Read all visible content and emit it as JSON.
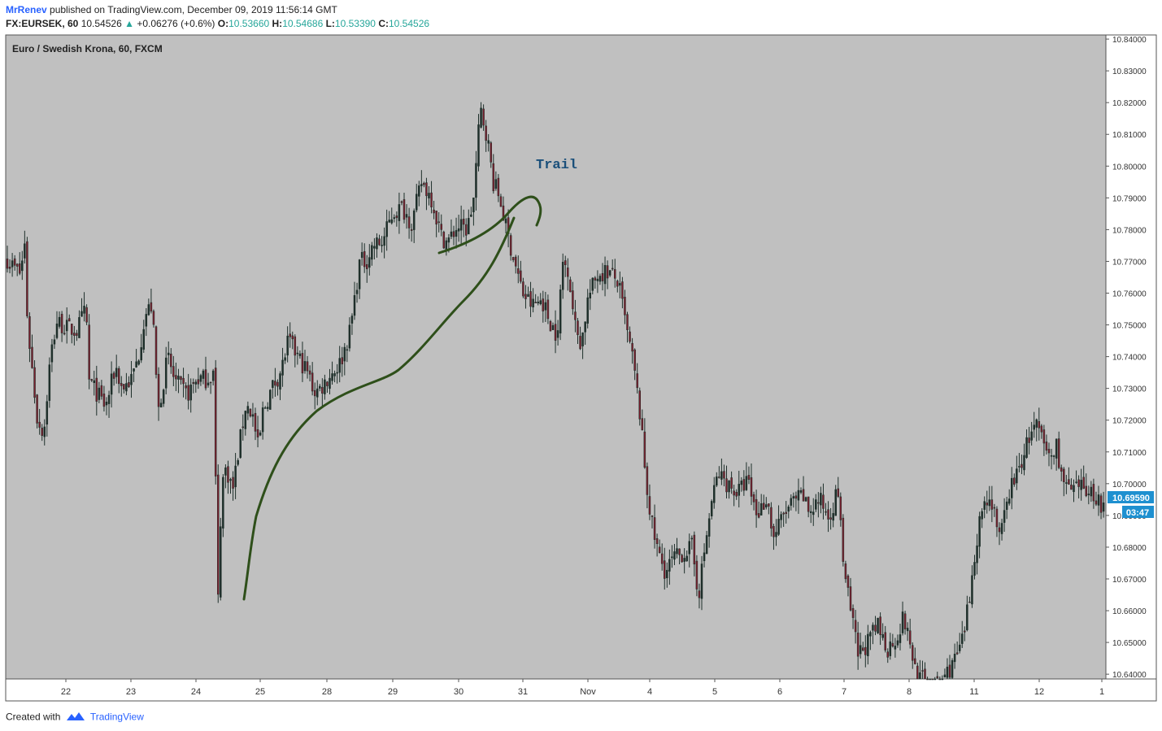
{
  "header": {
    "author": "MrRenev",
    "published_text": "published on TradingView.com, December 09, 2019 11:56:14 GMT",
    "symbol": "FX:EURSEK, 60",
    "last": "10.54526",
    "change_arrow": "▲",
    "change": "+0.06276 (+0.6%)",
    "o_label": "O:",
    "o_value": "10.53660",
    "h_label": "H:",
    "h_value": "10.54686",
    "l_label": "L:",
    "l_value": "10.53390",
    "c_label": "C:",
    "c_value": "10.54526"
  },
  "chart_data": {
    "type": "candlestick",
    "title": "Euro / Swedish Krona, 60, FXCM",
    "ylim": [
      10.6385,
      10.8413
    ],
    "y_ticks": [
      "10.84000",
      "10.83000",
      "10.82000",
      "10.81000",
      "10.80000",
      "10.79000",
      "10.78000",
      "10.77000",
      "10.76000",
      "10.75000",
      "10.74000",
      "10.73000",
      "10.72000",
      "10.71000",
      "10.70000",
      "10.69000",
      "10.68000",
      "10.67000",
      "10.66000",
      "10.65000",
      "10.64000"
    ],
    "x_ticks": [
      "22",
      "23",
      "24",
      "25",
      "28",
      "29",
      "30",
      "31",
      "Nov",
      "4",
      "5",
      "6",
      "7",
      "8",
      "11",
      "12",
      "1"
    ],
    "price_marker": "10.69590",
    "countdown_marker": "03:47",
    "annotation_text": "Trail",
    "path_points": [
      {
        "d": 21.0,
        "p": 10.777
      },
      {
        "d": 21.1,
        "p": 10.77
      },
      {
        "d": 21.3,
        "p": 10.766
      },
      {
        "d": 21.35,
        "p": 10.778
      },
      {
        "d": 21.4,
        "p": 10.75
      },
      {
        "d": 21.5,
        "p": 10.73
      },
      {
        "d": 21.55,
        "p": 10.72
      },
      {
        "d": 21.65,
        "p": 10.716
      },
      {
        "d": 21.75,
        "p": 10.74
      },
      {
        "d": 21.85,
        "p": 10.751
      },
      {
        "d": 22.0,
        "p": 10.749
      },
      {
        "d": 22.15,
        "p": 10.748
      },
      {
        "d": 22.3,
        "p": 10.755
      },
      {
        "d": 22.33,
        "p": 10.733
      },
      {
        "d": 22.45,
        "p": 10.729
      },
      {
        "d": 22.6,
        "p": 10.724
      },
      {
        "d": 22.75,
        "p": 10.737
      },
      {
        "d": 22.85,
        "p": 10.73
      },
      {
        "d": 23.0,
        "p": 10.733
      },
      {
        "d": 23.1,
        "p": 10.74
      },
      {
        "d": 23.2,
        "p": 10.753
      },
      {
        "d": 23.3,
        "p": 10.756
      },
      {
        "d": 23.35,
        "p": 10.744
      },
      {
        "d": 23.4,
        "p": 10.722
      },
      {
        "d": 23.55,
        "p": 10.74
      },
      {
        "d": 23.65,
        "p": 10.733
      },
      {
        "d": 23.75,
        "p": 10.73
      },
      {
        "d": 23.85,
        "p": 10.728
      },
      {
        "d": 24.0,
        "p": 10.733
      },
      {
        "d": 24.15,
        "p": 10.733
      },
      {
        "d": 24.25,
        "p": 10.735
      },
      {
        "d": 24.28,
        "p": 10.71
      },
      {
        "d": 24.32,
        "p": 10.66
      },
      {
        "d": 24.38,
        "p": 10.7
      },
      {
        "d": 24.45,
        "p": 10.705
      },
      {
        "d": 24.55,
        "p": 10.698
      },
      {
        "d": 24.65,
        "p": 10.712
      },
      {
        "d": 24.75,
        "p": 10.725
      },
      {
        "d": 24.85,
        "p": 10.722
      },
      {
        "d": 24.95,
        "p": 10.71
      },
      {
        "d": 25.0,
        "p": 10.722
      },
      {
        "d": 25.15,
        "p": 10.73
      },
      {
        "d": 25.3,
        "p": 10.736
      },
      {
        "d": 25.4,
        "p": 10.745
      },
      {
        "d": 25.55,
        "p": 10.74
      },
      {
        "d": 25.7,
        "p": 10.735
      },
      {
        "d": 25.8,
        "p": 10.729
      },
      {
        "d": 25.9,
        "p": 10.73
      },
      {
        "d": 26.0,
        "p": 10.733
      },
      {
        "d": 26.2,
        "p": 10.738
      },
      {
        "d": 26.35,
        "p": 10.748
      },
      {
        "d": 26.5,
        "p": 10.77
      },
      {
        "d": 26.6,
        "p": 10.77
      },
      {
        "d": 26.7,
        "p": 10.775
      },
      {
        "d": 26.85,
        "p": 10.776
      },
      {
        "d": 27.0,
        "p": 10.785
      },
      {
        "d": 27.15,
        "p": 10.787
      },
      {
        "d": 27.3,
        "p": 10.782
      },
      {
        "d": 27.45,
        "p": 10.795
      },
      {
        "d": 27.6,
        "p": 10.79
      },
      {
        "d": 27.75,
        "p": 10.778
      },
      {
        "d": 27.85,
        "p": 10.776
      },
      {
        "d": 28.0,
        "p": 10.781
      },
      {
        "d": 28.15,
        "p": 10.78
      },
      {
        "d": 28.25,
        "p": 10.79
      },
      {
        "d": 28.35,
        "p": 10.818
      },
      {
        "d": 28.45,
        "p": 10.81
      },
      {
        "d": 28.55,
        "p": 10.795
      },
      {
        "d": 28.65,
        "p": 10.79
      },
      {
        "d": 28.75,
        "p": 10.78
      },
      {
        "d": 28.85,
        "p": 10.772
      },
      {
        "d": 29.0,
        "p": 10.76
      },
      {
        "d": 29.15,
        "p": 10.756
      },
      {
        "d": 29.3,
        "p": 10.758
      },
      {
        "d": 29.4,
        "p": 10.752
      },
      {
        "d": 29.55,
        "p": 10.746
      },
      {
        "d": 29.6,
        "p": 10.77
      },
      {
        "d": 29.7,
        "p": 10.768
      },
      {
        "d": 29.8,
        "p": 10.75
      },
      {
        "d": 29.9,
        "p": 10.744
      },
      {
        "d": 30.0,
        "p": 10.758
      },
      {
        "d": 30.15,
        "p": 10.766
      },
      {
        "d": 30.3,
        "p": 10.767
      },
      {
        "d": 30.45,
        "p": 10.764
      },
      {
        "d": 30.5,
        "p": 10.76
      },
      {
        "d": 30.6,
        "p": 10.748
      },
      {
        "d": 30.7,
        "p": 10.738
      },
      {
        "d": 30.8,
        "p": 10.722
      },
      {
        "d": 30.9,
        "p": 10.7
      },
      {
        "d": 31.0,
        "p": 10.685
      },
      {
        "d": 31.1,
        "p": 10.677
      },
      {
        "d": 31.2,
        "p": 10.672
      },
      {
        "d": 31.3,
        "p": 10.676
      },
      {
        "d": 31.45,
        "p": 10.678
      },
      {
        "d": 31.6,
        "p": 10.68
      },
      {
        "d": 31.7,
        "p": 10.665
      },
      {
        "d": 31.8,
        "p": 10.68
      },
      {
        "d": 31.9,
        "p": 10.694
      },
      {
        "d": 32.0,
        "p": 10.703
      },
      {
        "d": 32.15,
        "p": 10.7
      },
      {
        "d": 32.3,
        "p": 10.697
      },
      {
        "d": 32.45,
        "p": 10.701
      },
      {
        "d": 32.6,
        "p": 10.69
      },
      {
        "d": 32.75,
        "p": 10.696
      },
      {
        "d": 32.85,
        "p": 10.683
      },
      {
        "d": 33.0,
        "p": 10.69
      },
      {
        "d": 33.15,
        "p": 10.694
      },
      {
        "d": 33.3,
        "p": 10.696
      },
      {
        "d": 33.4,
        "p": 10.691
      },
      {
        "d": 33.55,
        "p": 10.695
      },
      {
        "d": 33.7,
        "p": 10.69
      },
      {
        "d": 33.85,
        "p": 10.698
      },
      {
        "d": 33.9,
        "p": 10.68
      },
      {
        "d": 34.0,
        "p": 10.664
      },
      {
        "d": 34.15,
        "p": 10.646
      },
      {
        "d": 34.3,
        "p": 10.65
      },
      {
        "d": 34.45,
        "p": 10.655
      },
      {
        "d": 34.6,
        "p": 10.648
      },
      {
        "d": 34.75,
        "p": 10.652
      },
      {
        "d": 34.85,
        "p": 10.658
      },
      {
        "d": 34.95,
        "p": 10.649
      },
      {
        "d": 35.05,
        "p": 10.64
      },
      {
        "d": 35.2,
        "p": 10.637
      },
      {
        "d": 35.35,
        "p": 10.636
      },
      {
        "d": 35.5,
        "p": 10.64
      },
      {
        "d": 35.65,
        "p": 10.645
      },
      {
        "d": 35.75,
        "p": 10.65
      },
      {
        "d": 35.85,
        "p": 10.662
      },
      {
        "d": 35.95,
        "p": 10.68
      },
      {
        "d": 36.05,
        "p": 10.692
      },
      {
        "d": 36.15,
        "p": 10.696
      },
      {
        "d": 36.25,
        "p": 10.692
      },
      {
        "d": 36.3,
        "p": 10.68
      },
      {
        "d": 36.4,
        "p": 10.69
      },
      {
        "d": 36.5,
        "p": 10.7
      },
      {
        "d": 36.6,
        "p": 10.703
      },
      {
        "d": 36.7,
        "p": 10.71
      },
      {
        "d": 36.8,
        "p": 10.716
      },
      {
        "d": 36.9,
        "p": 10.718
      },
      {
        "d": 37.0,
        "p": 10.712
      },
      {
        "d": 37.1,
        "p": 10.708
      },
      {
        "d": 37.2,
        "p": 10.712
      },
      {
        "d": 37.3,
        "p": 10.7
      },
      {
        "d": 37.45,
        "p": 10.697
      },
      {
        "d": 37.6,
        "p": 10.699
      },
      {
        "d": 37.75,
        "p": 10.697
      },
      {
        "d": 37.85,
        "p": 10.695
      },
      {
        "d": 37.95,
        "p": 10.69
      },
      {
        "d": 38.05,
        "p": 10.698
      },
      {
        "d": 38.15,
        "p": 10.693
      },
      {
        "d": 38.25,
        "p": 10.699
      },
      {
        "d": 38.35,
        "p": 10.696
      }
    ]
  },
  "footer": {
    "created_with": "Created with",
    "brand": "TradingView"
  },
  "colors": {
    "plot_bg": "#c0c0c0",
    "candle": "#1e2f2a",
    "trail": "#2e4f1a",
    "annotation": "#1a4f7a",
    "marker_bg": "#1e90d0",
    "accent_blue": "#2962ff",
    "up_green": "#26a69a"
  }
}
